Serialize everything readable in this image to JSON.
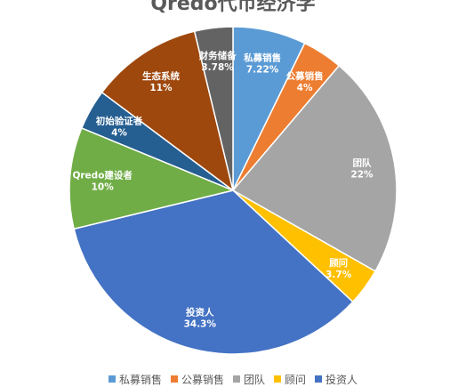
{
  "chart_data": {
    "type": "pie",
    "title": "Qredo代币经济学",
    "slices": [
      {
        "name": "私募销售",
        "value": 7.22,
        "label": "7.22%",
        "color": "#5b9bd5"
      },
      {
        "name": "公募销售",
        "value": 4,
        "label": "4%",
        "color": "#ed7d31"
      },
      {
        "name": "团队",
        "value": 22,
        "label": "22%",
        "color": "#a5a5a5"
      },
      {
        "name": "顾问",
        "value": 3.7,
        "label": "3.7%",
        "color": "#ffc000"
      },
      {
        "name": "投资人",
        "value": 34.3,
        "label": "34.3%",
        "color": "#4472c4"
      },
      {
        "name": "Qredo建设者",
        "value": 10,
        "label": "10%",
        "color": "#70ad47"
      },
      {
        "name": "初始验证者",
        "value": 4,
        "label": "4%",
        "color": "#255e91"
      },
      {
        "name": "生态系统",
        "value": 11,
        "label": "11%",
        "color": "#9e480e"
      },
      {
        "name": "财务储备",
        "value": 3.78,
        "label": "3.78%",
        "color": "#636363"
      }
    ],
    "legend": {
      "position": "bottom",
      "entries": [
        "私募销售",
        "公募销售",
        "团队",
        "顾问",
        "投资人"
      ]
    }
  }
}
